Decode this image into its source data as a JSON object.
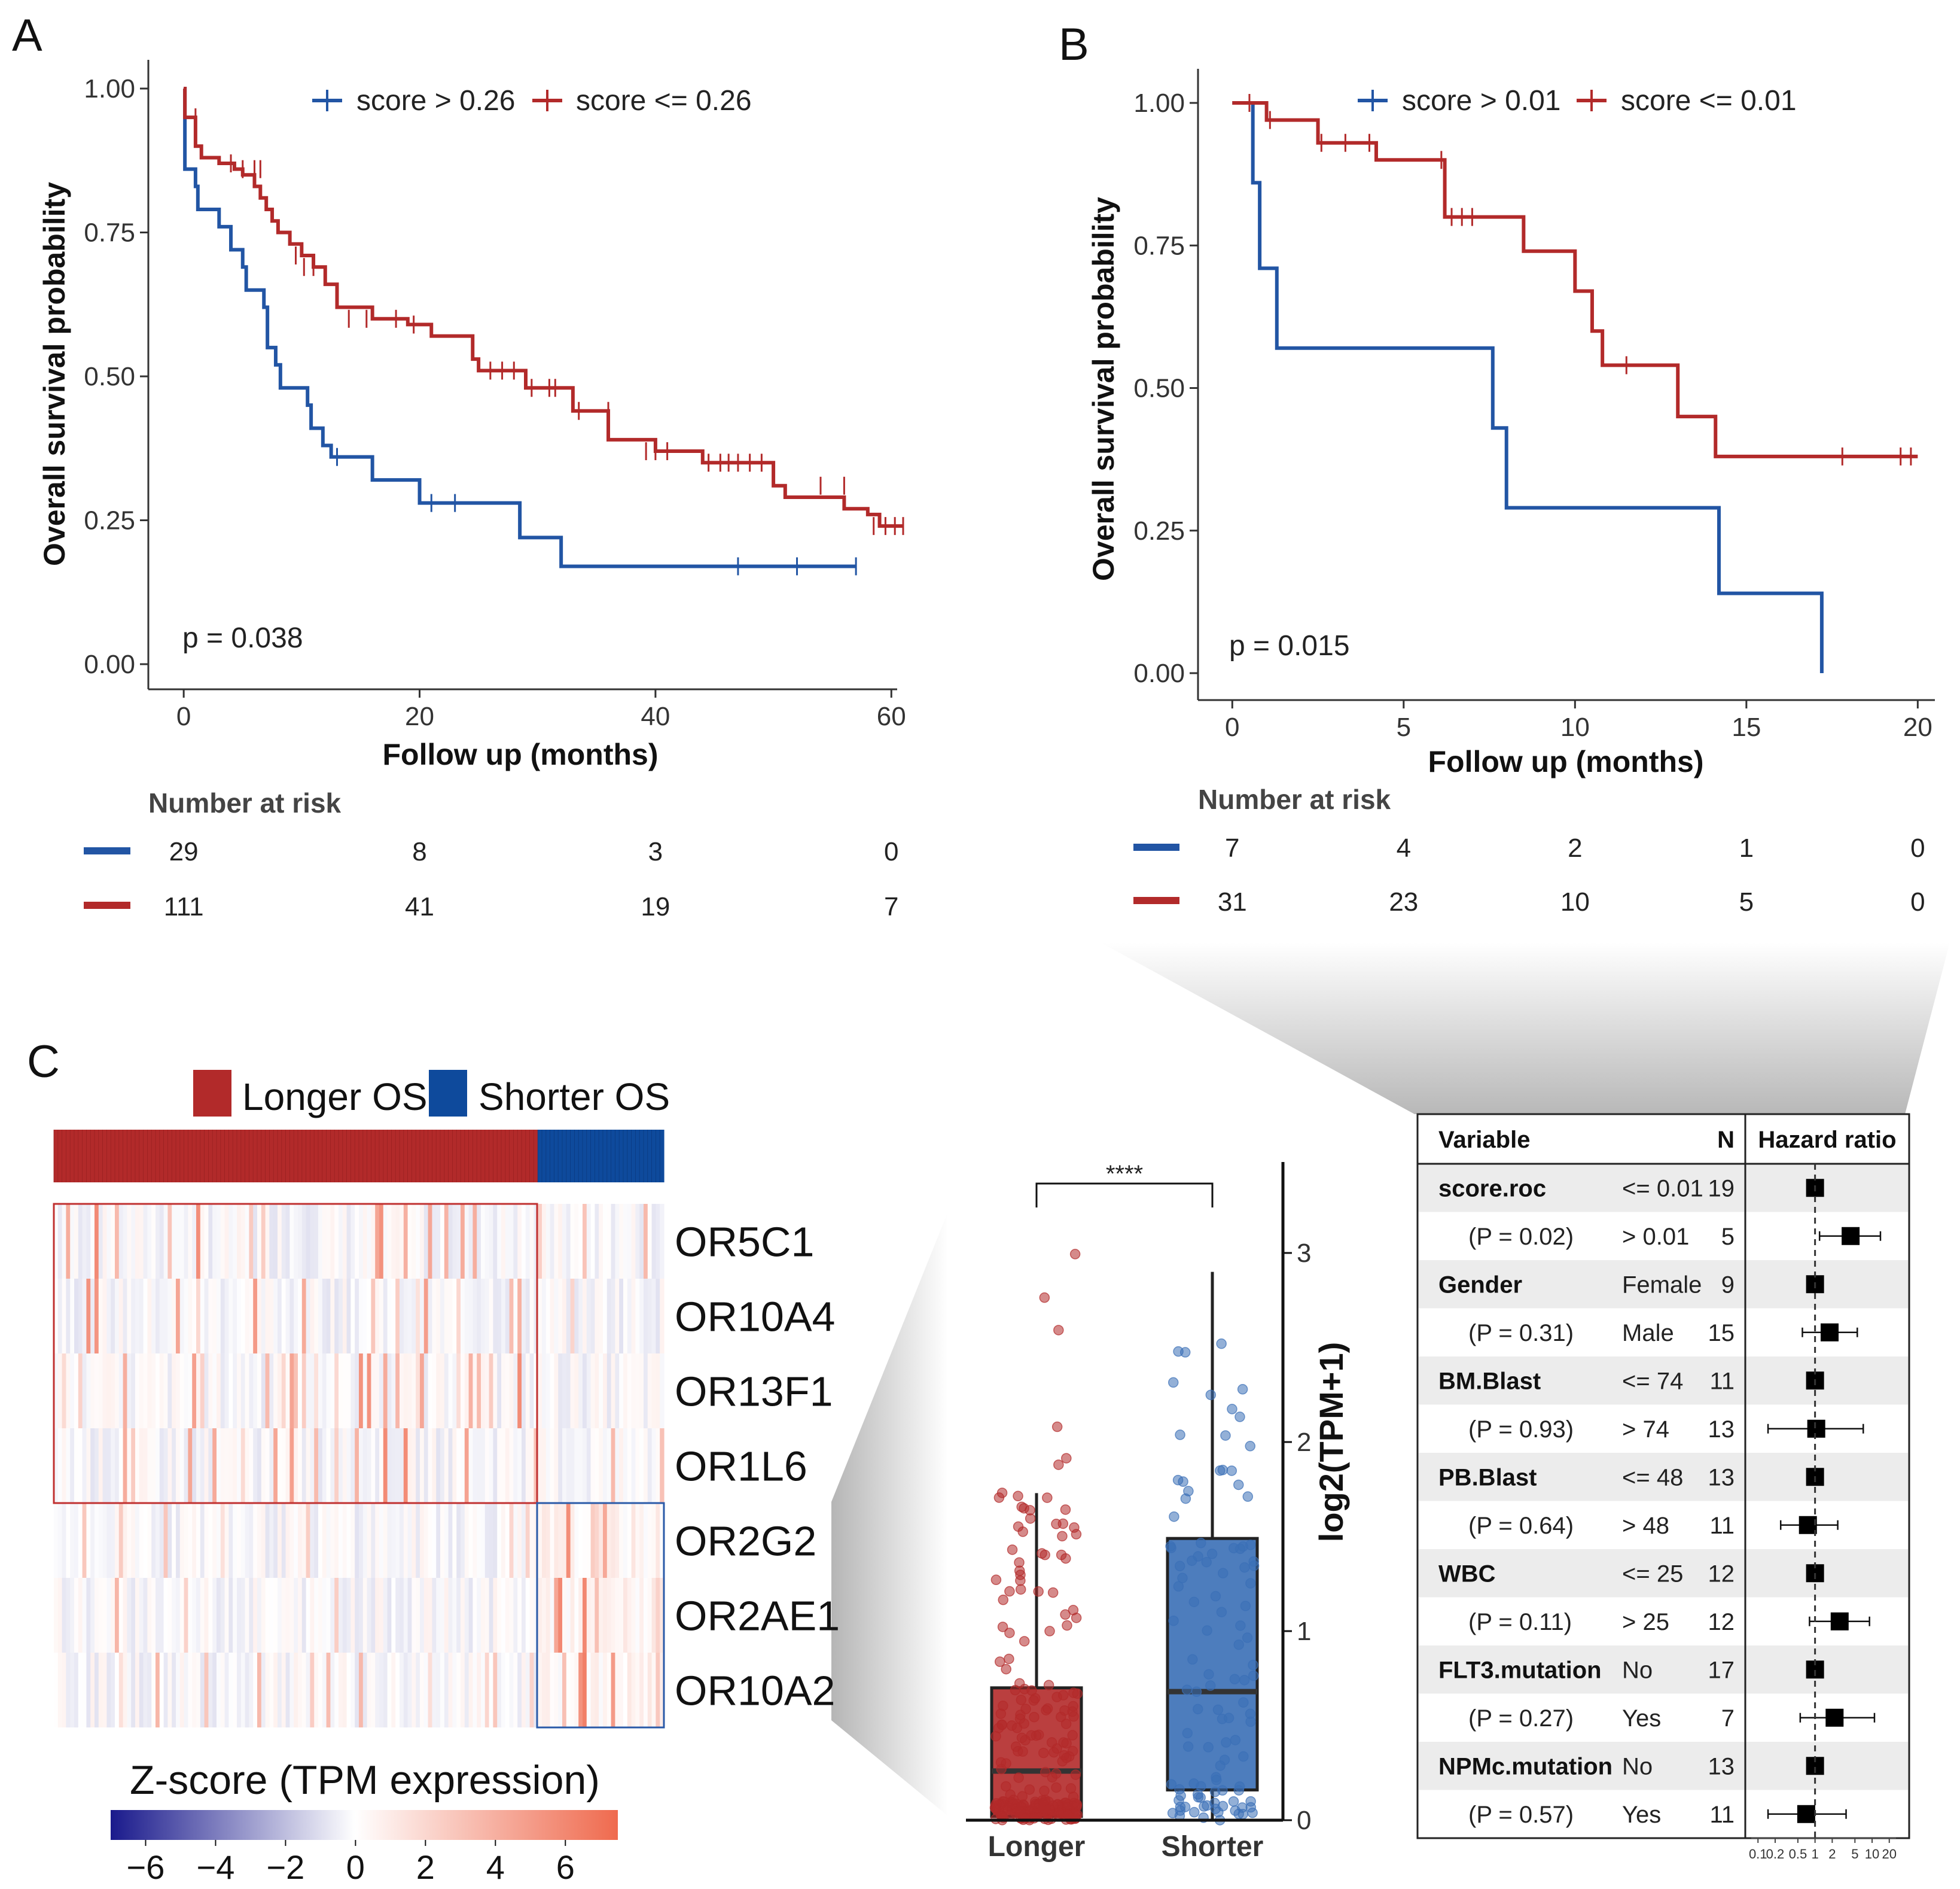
{
  "panels": {
    "a": "A",
    "b": "B",
    "c": "C"
  },
  "chart_data": [
    {
      "id": "A",
      "type": "line",
      "step": true,
      "title": "",
      "xlabel": "Follow up (months)",
      "ylabel": "Overall survival probability",
      "xlim": [
        -3,
        61
      ],
      "ylim": [
        0,
        1
      ],
      "xticks": [
        0,
        20,
        40,
        60
      ],
      "yticks": [
        "0.00",
        "0.25",
        "0.50",
        "0.75",
        "1.00"
      ],
      "pvalue": "p = 0.038",
      "legend": [
        "score > 0.26",
        "score <= 0.26"
      ],
      "colors": [
        "#2255a4",
        "#b22a2a"
      ],
      "series": [
        {
          "name": "score > 0.26",
          "points": [
            [
              0,
              1.0
            ],
            [
              0.1,
              0.86
            ],
            [
              1,
              0.83
            ],
            [
              1.2,
              0.79
            ],
            [
              3,
              0.76
            ],
            [
              4,
              0.72
            ],
            [
              5,
              0.69
            ],
            [
              5.3,
              0.65
            ],
            [
              6.8,
              0.62
            ],
            [
              7.1,
              0.55
            ],
            [
              7.8,
              0.52
            ],
            [
              8.2,
              0.48
            ],
            [
              10.5,
              0.45
            ],
            [
              10.8,
              0.41
            ],
            [
              11.8,
              0.38
            ],
            [
              12.5,
              0.36
            ],
            [
              16,
              0.32
            ],
            [
              20,
              0.28
            ],
            [
              28.5,
              0.22
            ],
            [
              32,
              0.17
            ],
            [
              57,
              0.17
            ]
          ],
          "censors": [
            [
              13,
              0.36
            ],
            [
              21,
              0.28
            ],
            [
              23,
              0.28
            ],
            [
              47,
              0.17
            ],
            [
              52,
              0.17
            ],
            [
              57,
              0.17
            ]
          ]
        },
        {
          "name": "score <= 0.26",
          "points": [
            [
              0,
              1.0
            ],
            [
              0.1,
              0.95
            ],
            [
              1,
              0.9
            ],
            [
              1.5,
              0.88
            ],
            [
              3,
              0.87
            ],
            [
              4.3,
              0.86
            ],
            [
              5,
              0.85
            ],
            [
              6,
              0.83
            ],
            [
              6.5,
              0.81
            ],
            [
              7,
              0.79
            ],
            [
              7.5,
              0.77
            ],
            [
              8,
              0.75
            ],
            [
              9,
              0.73
            ],
            [
              10,
              0.71
            ],
            [
              11,
              0.69
            ],
            [
              12,
              0.66
            ],
            [
              13,
              0.62
            ],
            [
              16,
              0.6
            ],
            [
              19,
              0.59
            ],
            [
              21,
              0.57
            ],
            [
              24.5,
              0.53
            ],
            [
              25,
              0.51
            ],
            [
              29,
              0.48
            ],
            [
              33,
              0.44
            ],
            [
              36,
              0.39
            ],
            [
              40,
              0.37
            ],
            [
              44,
              0.35
            ],
            [
              50,
              0.31
            ],
            [
              51,
              0.29
            ],
            [
              56,
              0.27
            ],
            [
              58,
              0.26
            ],
            [
              59,
              0.24
            ],
            [
              61,
              0.24
            ]
          ],
          "censors": [
            [
              1,
              0.95
            ],
            [
              4,
              0.87
            ],
            [
              5,
              0.86
            ],
            [
              6,
              0.86
            ],
            [
              6.5,
              0.86
            ],
            [
              9.5,
              0.71
            ],
            [
              10.2,
              0.69
            ],
            [
              11,
              0.69
            ],
            [
              14,
              0.6
            ],
            [
              15.5,
              0.6
            ],
            [
              18,
              0.6
            ],
            [
              19.5,
              0.59
            ],
            [
              26,
              0.51
            ],
            [
              27,
              0.51
            ],
            [
              28,
              0.51
            ],
            [
              29.5,
              0.48
            ],
            [
              31,
              0.48
            ],
            [
              31.5,
              0.48
            ],
            [
              33.5,
              0.44
            ],
            [
              36,
              0.44
            ],
            [
              39.2,
              0.37
            ],
            [
              40,
              0.37
            ],
            [
              41,
              0.37
            ],
            [
              44.5,
              0.35
            ],
            [
              45.5,
              0.35
            ],
            [
              46.2,
              0.35
            ],
            [
              47,
              0.35
            ],
            [
              48,
              0.35
            ],
            [
              49,
              0.35
            ],
            [
              54,
              0.31
            ],
            [
              56,
              0.31
            ],
            [
              58.5,
              0.24
            ],
            [
              59.5,
              0.24
            ],
            [
              60.3,
              0.24
            ],
            [
              61,
              0.24
            ]
          ]
        }
      ],
      "risk_table": {
        "title": "Number at risk",
        "times": [
          0,
          20,
          40,
          60
        ],
        "rows": [
          {
            "name": "score > 0.26",
            "values": [
              "29",
              "8",
              "3",
              "0"
            ]
          },
          {
            "name": "score <= 0.26",
            "values": [
              "111",
              "41",
              "19",
              "7"
            ]
          }
        ]
      }
    },
    {
      "id": "B",
      "type": "line",
      "step": true,
      "title": "",
      "xlabel": "Follow up (months)",
      "ylabel": "Overall survival probability",
      "xlim": [
        -1,
        20.5
      ],
      "ylim": [
        0,
        1
      ],
      "xticks": [
        0,
        5,
        10,
        15,
        20
      ],
      "yticks": [
        "0.00",
        "0.25",
        "0.50",
        "0.75",
        "1.00"
      ],
      "pvalue": "p = 0.015",
      "legend": [
        "score > 0.01",
        "score <= 0.01"
      ],
      "colors": [
        "#2255a4",
        "#b22a2a"
      ],
      "series": [
        {
          "name": "score > 0.01",
          "points": [
            [
              0,
              1.0
            ],
            [
              0.6,
              1.0
            ],
            [
              0.6,
              0.86
            ],
            [
              0.8,
              0.71
            ],
            [
              1.3,
              0.57
            ],
            [
              7.6,
              0.43
            ],
            [
              8,
              0.29
            ],
            [
              14.2,
              0.14
            ],
            [
              17.2,
              0.0
            ]
          ],
          "censors": []
        },
        {
          "name": "score <= 0.01",
          "points": [
            [
              0,
              1.0
            ],
            [
              1,
              0.97
            ],
            [
              2.5,
              0.93
            ],
            [
              4,
              0.93
            ],
            [
              4.2,
              0.9
            ],
            [
              6.2,
              0.8
            ],
            [
              8.5,
              0.74
            ],
            [
              10,
              0.67
            ],
            [
              10.5,
              0.6
            ],
            [
              10.8,
              0.54
            ],
            [
              13,
              0.45
            ],
            [
              14.1,
              0.38
            ],
            [
              20,
              0.38
            ]
          ],
          "censors": [
            [
              0.5,
              1.0
            ],
            [
              1.1,
              0.97
            ],
            [
              2.6,
              0.93
            ],
            [
              3.3,
              0.93
            ],
            [
              4,
              0.93
            ],
            [
              6.1,
              0.9
            ],
            [
              6.4,
              0.8
            ],
            [
              6.7,
              0.8
            ],
            [
              7,
              0.8
            ],
            [
              11.5,
              0.54
            ],
            [
              17.8,
              0.38
            ],
            [
              19.5,
              0.38
            ],
            [
              19.8,
              0.38
            ]
          ]
        }
      ],
      "risk_table": {
        "title": "Number at risk",
        "times": [
          0,
          5,
          10,
          15,
          20
        ],
        "rows": [
          {
            "name": "score > 0.01",
            "values": [
              "7",
              "4",
              "2",
              "1",
              "0"
            ]
          },
          {
            "name": "score <= 0.01",
            "values": [
              "31",
              "23",
              "10",
              "5",
              "0"
            ]
          }
        ]
      }
    },
    {
      "id": "C-heatmap",
      "type": "heatmap",
      "legend": [
        "Longer OS",
        "Shorter OS"
      ],
      "legend_colors": [
        "#b22a2a",
        "#0e4a9c"
      ],
      "group_fraction_longer": 0.79,
      "genes": [
        "OR5C1",
        "OR10A4",
        "OR13F1",
        "OR1L6",
        "OR2G2",
        "OR2AE1",
        "OR10A2"
      ],
      "gene_groups": [
        "longer",
        "longer",
        "longer",
        "longer",
        "shorter",
        "shorter",
        "shorter"
      ],
      "colorbar": {
        "title": "Z-score (TPM expression)",
        "range": [
          -7,
          7.5
        ],
        "ticks": [
          "−6",
          "−4",
          "−2",
          "0",
          "2",
          "4",
          "6"
        ],
        "tick_values": [
          -6,
          -4,
          -2,
          0,
          2,
          4,
          6
        ],
        "colors": [
          "#1a1a8c",
          "#ffffff",
          "#ef6a4e"
        ]
      }
    },
    {
      "id": "C-boxplot",
      "type": "box",
      "categories": [
        "Longer",
        "Shorter"
      ],
      "ylabel": "log2(TPM+1)",
      "ylim": [
        0,
        3.5
      ],
      "yticks": [
        "0",
        "1",
        "2",
        "3"
      ],
      "significance": "****",
      "colors": [
        "#b22a2a",
        "#3a6fb6"
      ],
      "boxes": [
        {
          "name": "Longer",
          "min": 0,
          "q1": 0.02,
          "median": 0.26,
          "q3": 0.7,
          "max": 1.73
        },
        {
          "name": "Shorter",
          "min": 0,
          "q1": 0.16,
          "median": 0.68,
          "q3": 1.49,
          "max": 2.9
        }
      ]
    },
    {
      "id": "C-forest",
      "type": "table",
      "headers": [
        "Variable",
        "N",
        "Hazard ratio"
      ],
      "xscale": "log",
      "xrange": [
        0.08,
        25
      ],
      "xticks": [
        "0.1",
        "0.2",
        "0.5",
        "1",
        "2",
        "5",
        "10",
        "20"
      ],
      "xtick_values": [
        0.1,
        0.2,
        0.5,
        1,
        2,
        5,
        10,
        20
      ],
      "rows": [
        {
          "variable": "score.roc",
          "level": "<= 0.01",
          "n": "19",
          "hr": 1,
          "lo": null,
          "hi": null
        },
        {
          "variable": "(P = 0.02)",
          "level": "> 0.01",
          "n": "5",
          "hr": 4.2,
          "lo": 1.2,
          "hi": 14
        },
        {
          "variable": "Gender",
          "level": "Female",
          "n": "9",
          "hr": 1,
          "lo": null,
          "hi": null
        },
        {
          "variable": "(P = 0.31)",
          "level": "Male",
          "n": "15",
          "hr": 1.8,
          "lo": 0.6,
          "hi": 5.5
        },
        {
          "variable": "BM.Blast",
          "level": "<= 74",
          "n": "11",
          "hr": 1,
          "lo": null,
          "hi": null
        },
        {
          "variable": "(P = 0.93)",
          "level": "> 74",
          "n": "13",
          "hr": 1.05,
          "lo": 0.15,
          "hi": 7
        },
        {
          "variable": "PB.Blast",
          "level": "<= 48",
          "n": "13",
          "hr": 1,
          "lo": null,
          "hi": null
        },
        {
          "variable": "(P = 0.64)",
          "level": "> 48",
          "n": "11",
          "hr": 0.75,
          "lo": 0.25,
          "hi": 2.5
        },
        {
          "variable": "WBC",
          "level": "<= 25",
          "n": "12",
          "hr": 1,
          "lo": null,
          "hi": null
        },
        {
          "variable": "(P = 0.11)",
          "level": "> 25",
          "n": "12",
          "hr": 2.7,
          "lo": 0.8,
          "hi": 9
        },
        {
          "variable": "FLT3.mutation",
          "level": "No",
          "n": "17",
          "hr": 1,
          "lo": null,
          "hi": null
        },
        {
          "variable": "(P = 0.27)",
          "level": "Yes",
          "n": "7",
          "hr": 2.2,
          "lo": 0.55,
          "hi": 11
        },
        {
          "variable": "NPMc.mutation",
          "level": "No",
          "n": "13",
          "hr": 1,
          "lo": null,
          "hi": null
        },
        {
          "variable": "(P = 0.57)",
          "level": "Yes",
          "n": "11",
          "hr": 0.7,
          "lo": 0.15,
          "hi": 3.5
        }
      ]
    }
  ]
}
